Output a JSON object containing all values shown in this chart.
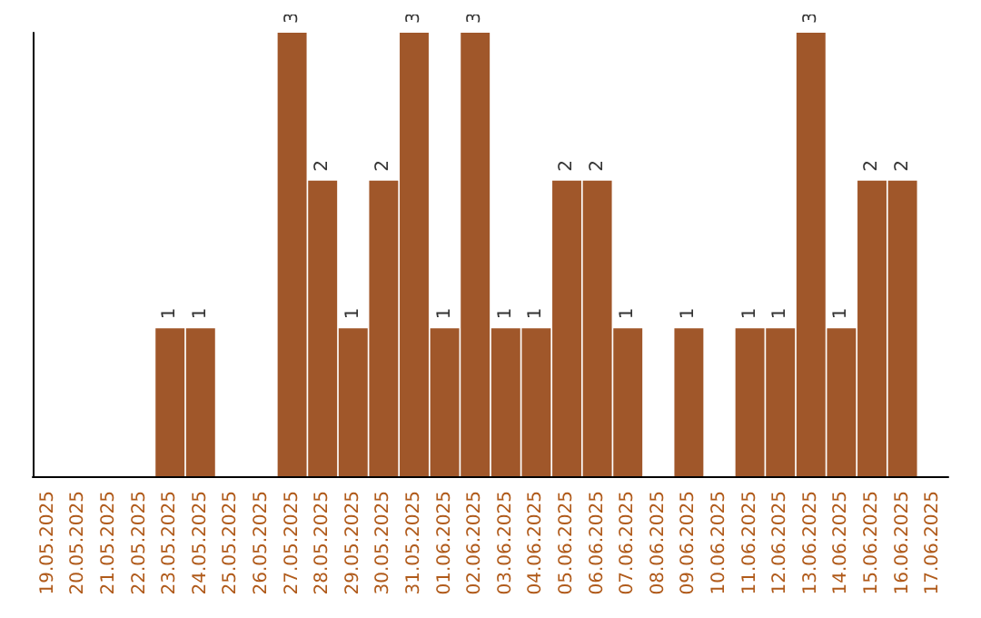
{
  "chart_data": {
    "type": "bar",
    "categories": [
      "19.05.2025",
      "20.05.2025",
      "21.05.2025",
      "22.05.2025",
      "23.05.2025",
      "24.05.2025",
      "25.05.2025",
      "26.05.2025",
      "27.05.2025",
      "28.05.2025",
      "29.05.2025",
      "30.05.2025",
      "31.05.2025",
      "01.06.2025",
      "02.06.2025",
      "03.06.2025",
      "04.06.2025",
      "05.06.2025",
      "06.06.2025",
      "07.06.2025",
      "08.06.2025",
      "09.06.2025",
      "10.06.2025",
      "11.06.2025",
      "12.06.2025",
      "13.06.2025",
      "14.06.2025",
      "15.06.2025",
      "16.06.2025",
      "17.06.2025"
    ],
    "values": [
      0,
      0,
      0,
      0,
      1,
      1,
      0,
      0,
      3,
      2,
      1,
      2,
      3,
      1,
      3,
      1,
      1,
      2,
      2,
      1,
      0,
      1,
      0,
      1,
      1,
      3,
      1,
      2,
      2,
      0
    ],
    "value_labels": [
      null,
      null,
      null,
      null,
      "1",
      "1",
      null,
      null,
      "3",
      "2",
      "1",
      "2",
      "3",
      "1",
      "3",
      "1",
      "1",
      "2",
      "2",
      "1",
      null,
      "1",
      null,
      "1",
      "1",
      "3",
      "1",
      "2",
      "2",
      null
    ],
    "color": "#a0572a",
    "tick_labels": "x",
    "grid": false
  }
}
